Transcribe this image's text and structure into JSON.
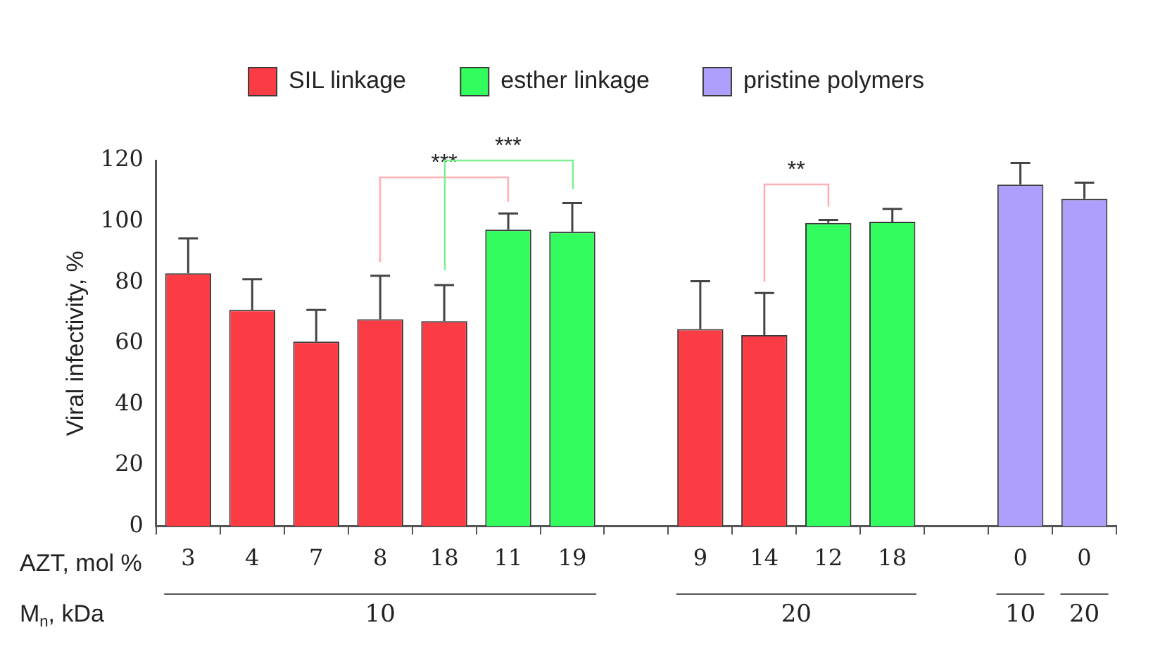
{
  "chart_data": {
    "type": "bar",
    "ylabel": "Viral infectivity, %",
    "xlabel": "AZT, mol %",
    "categories": [
      "3",
      "4",
      "7",
      "8",
      "18",
      "11",
      "19",
      null,
      "9",
      "14",
      "12",
      "18",
      null,
      "0",
      "0"
    ],
    "series": [
      {
        "name": "SIL linkage",
        "color": "#fc3c44",
        "values": [
          83,
          71,
          60.6,
          67.9,
          67.3,
          null,
          null,
          null,
          64.7,
          62.7,
          null,
          null,
          null,
          null,
          null
        ],
        "errors": [
          11.4,
          10,
          10.4,
          14.3,
          11.8,
          null,
          null,
          null,
          15.7,
          13.8,
          null,
          null,
          null,
          null,
          null
        ]
      },
      {
        "name": "esther linkage",
        "color": "#33fc5e",
        "values": [
          null,
          null,
          null,
          null,
          null,
          97.3,
          96.6,
          null,
          null,
          null,
          99.5,
          99.9,
          null,
          null,
          null
        ],
        "errors": [
          null,
          null,
          null,
          null,
          null,
          5.3,
          9.4,
          null,
          null,
          null,
          1,
          4.2,
          null,
          null,
          null
        ]
      },
      {
        "name": "pristine polymers",
        "color": "#ae9ffc",
        "values": [
          null,
          null,
          null,
          null,
          null,
          null,
          null,
          null,
          null,
          null,
          null,
          null,
          null,
          112.1,
          107.4
        ],
        "errors": [
          null,
          null,
          null,
          null,
          null,
          null,
          null,
          null,
          null,
          null,
          null,
          null,
          null,
          7.1,
          5.3
        ]
      }
    ],
    "ylim": [
      0,
      120
    ],
    "yticks": [
      0,
      20,
      40,
      60,
      80,
      100,
      120
    ],
    "legend": "top",
    "annotations": [
      "***",
      "***",
      "**",
      "M$_{n}$, kDa",
      "10",
      "20",
      "10",
      "20"
    ]
  }
}
